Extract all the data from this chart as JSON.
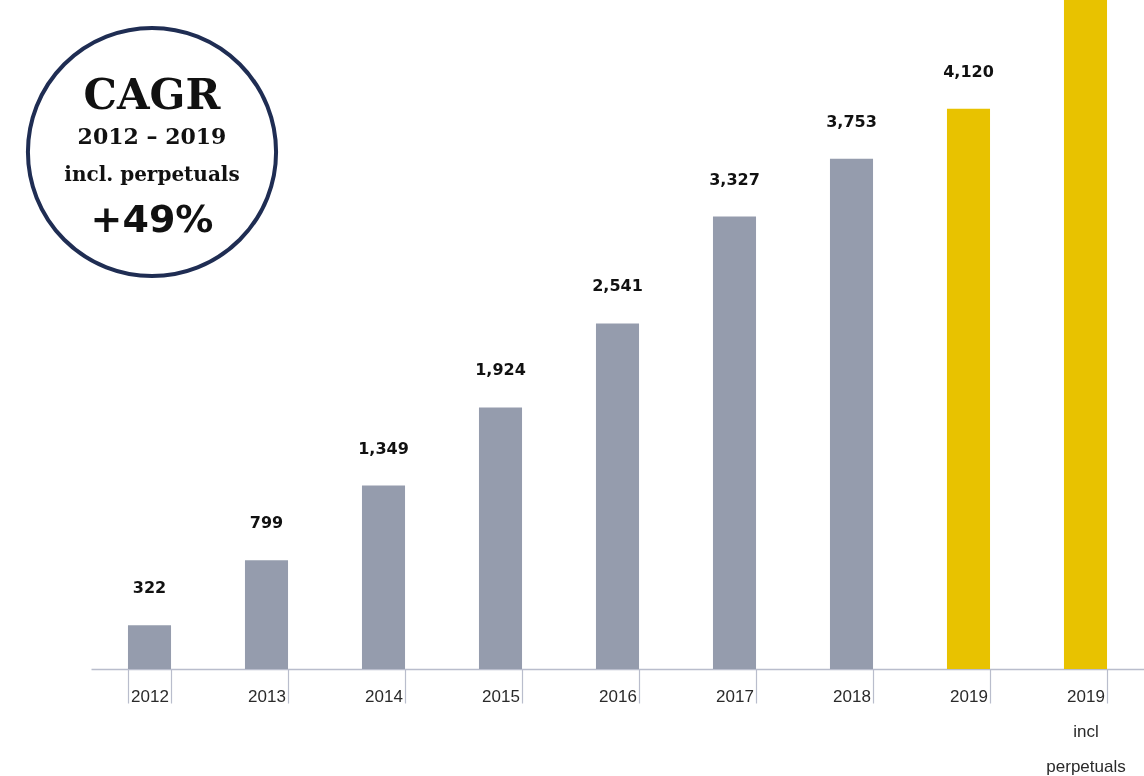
{
  "chart_data": {
    "type": "bar",
    "categories": [
      "2012",
      "2013",
      "2014",
      "2015",
      "2016",
      "2017",
      "2018",
      "2019",
      "2019 incl perpetuals"
    ],
    "values": [
      322,
      799,
      1349,
      1924,
      2541,
      3327,
      3753,
      4120,
      4920
    ],
    "colors": [
      "#959cad",
      "#959cad",
      "#959cad",
      "#959cad",
      "#959cad",
      "#959cad",
      "#959cad",
      "#e8c200",
      "#e8c200"
    ],
    "value_labels": [
      "322",
      "799",
      "1,349",
      "1,924",
      "2,541",
      "3,327",
      "3,753",
      "4,120",
      null
    ],
    "annotations": [
      "CAGR",
      "2012 – 2019",
      "incl. perpetuals",
      "+49%"
    ]
  }
}
